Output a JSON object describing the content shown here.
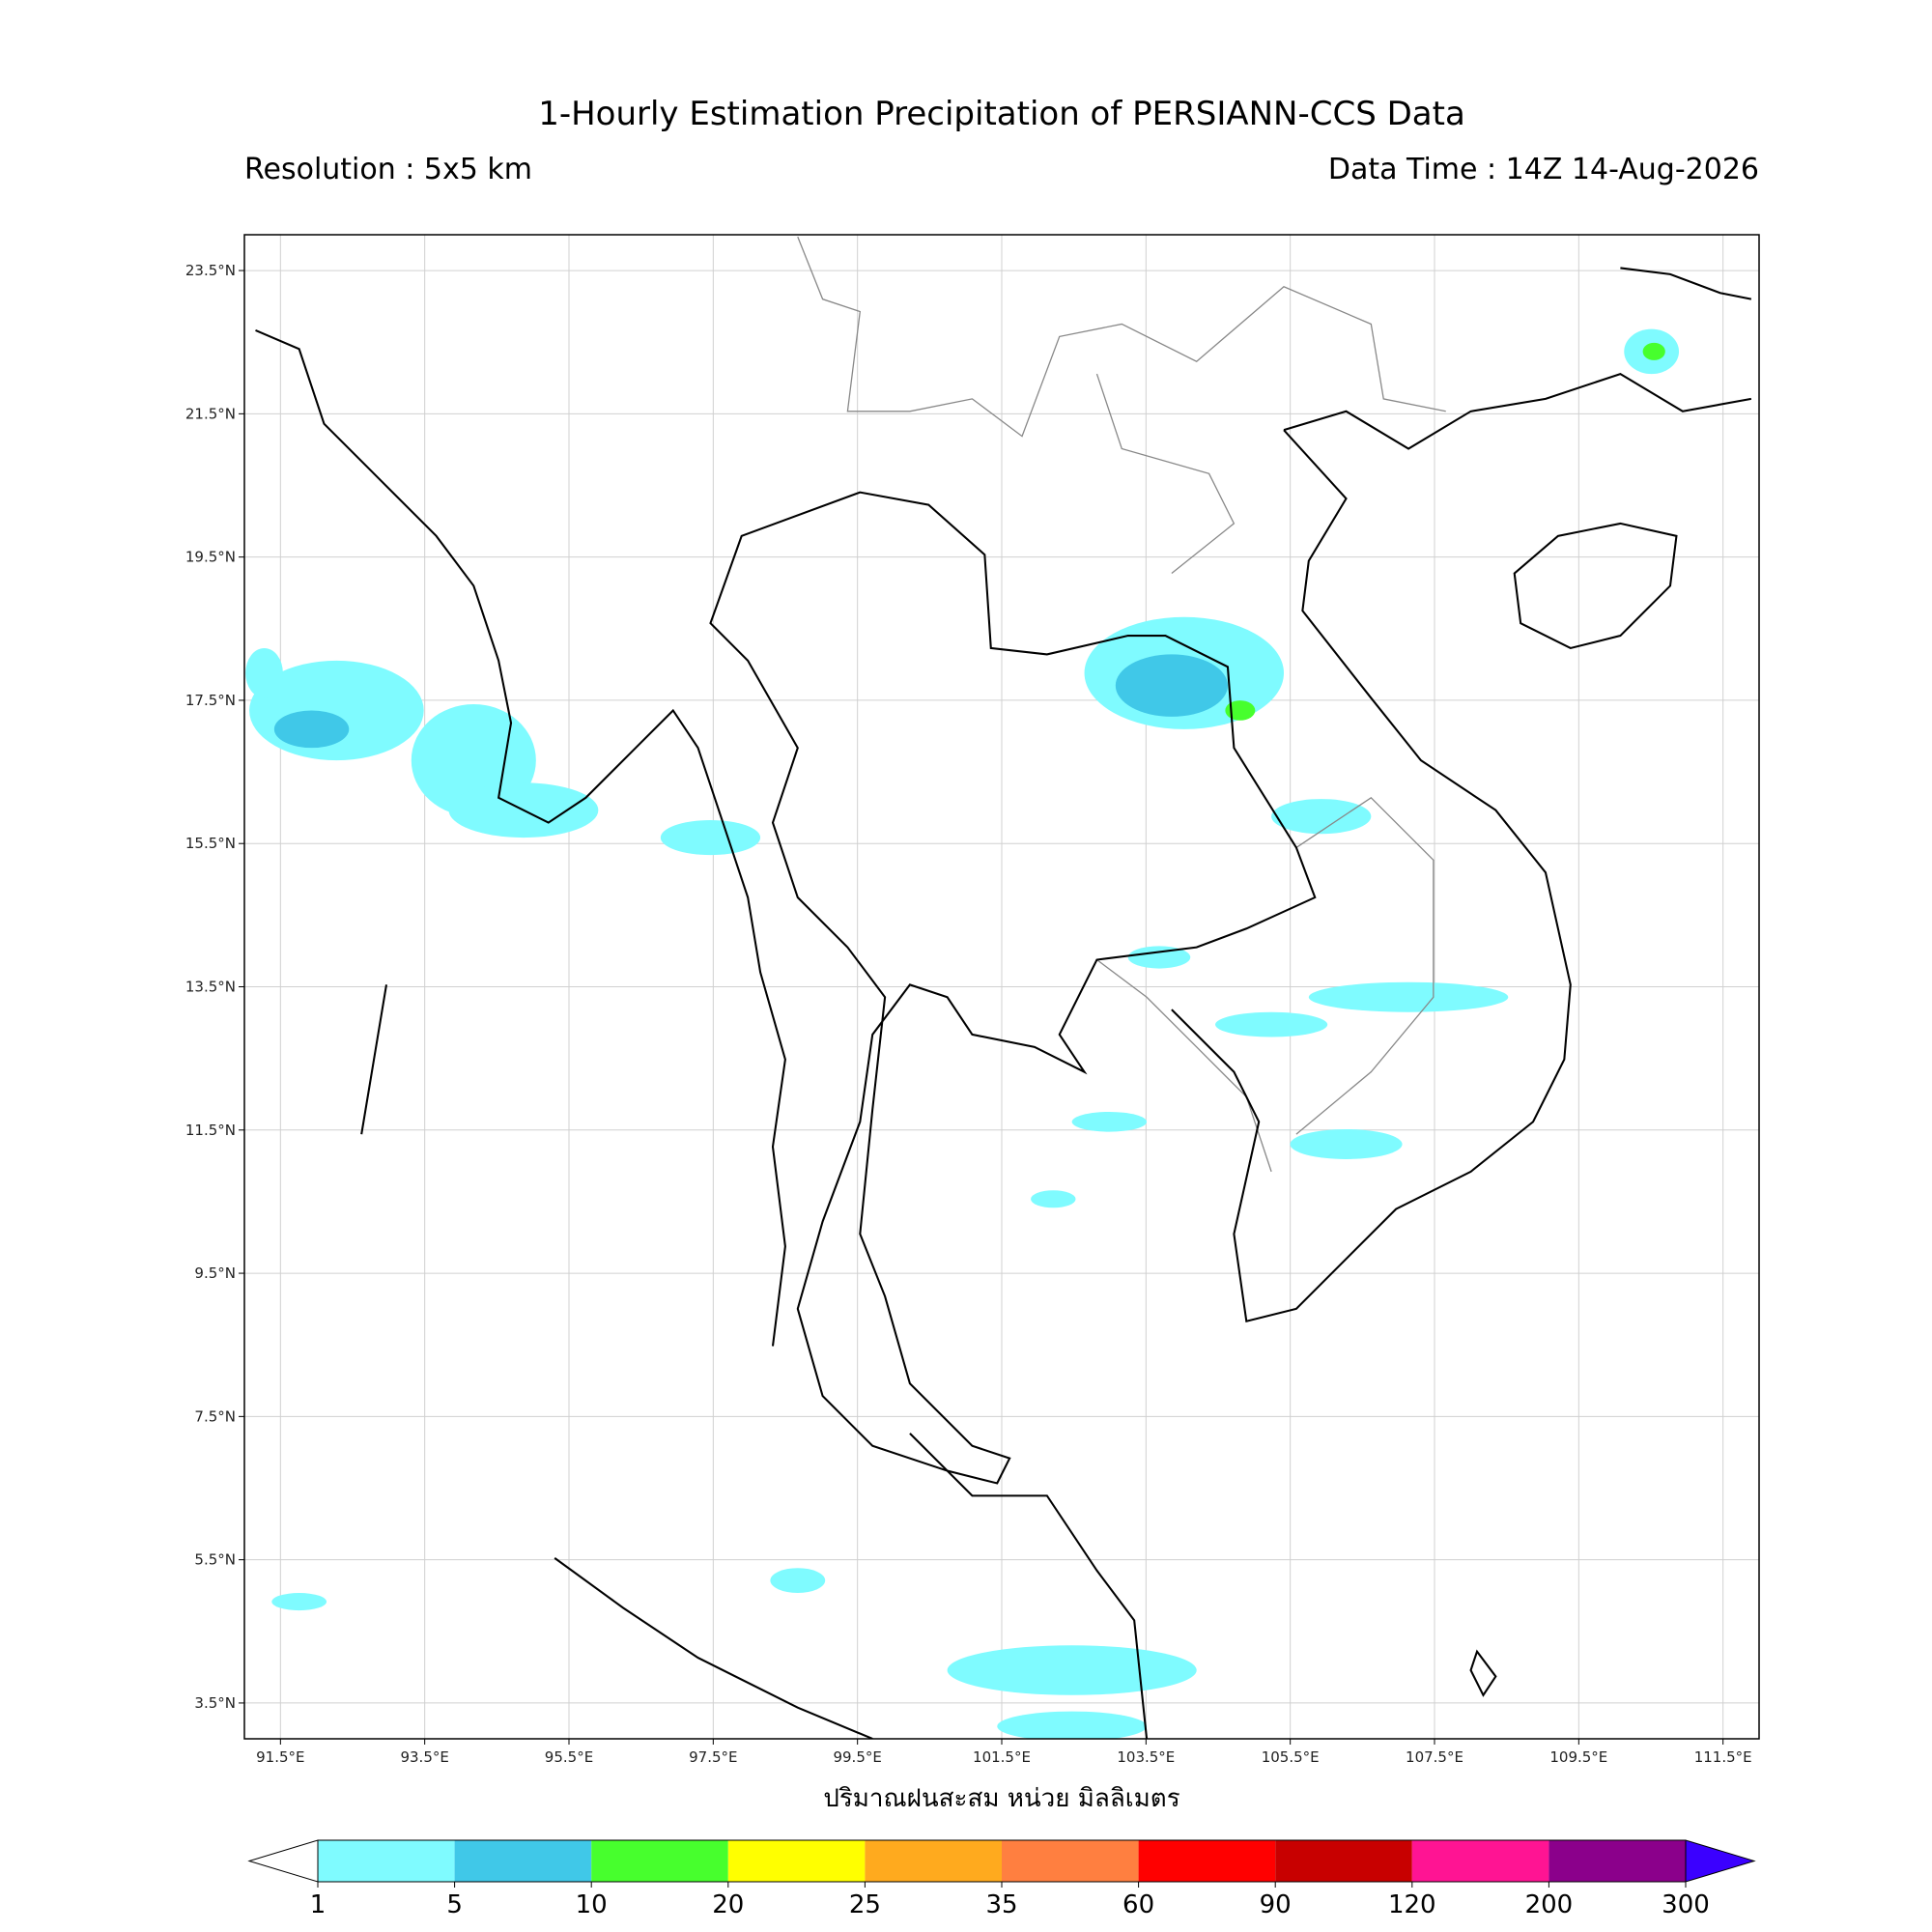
{
  "map": {
    "title": "1-Hourly Estimation Precipitation of PERSIANN-CCS Data",
    "subtitle_left": "Resolution : 5x5 km",
    "subtitle_right": "Data Time : 14Z 14-Aug-2026",
    "xlabel": "ปริมาณฝนสะสม หน่วย มิลลิเมตร",
    "xlim": [
      91,
      112
    ],
    "ylim": [
      3,
      24
    ],
    "xticks": [
      {
        "value": 91.5,
        "label": "91.5°E"
      },
      {
        "value": 93.5,
        "label": "93.5°E"
      },
      {
        "value": 95.5,
        "label": "95.5°E"
      },
      {
        "value": 97.5,
        "label": "97.5°E"
      },
      {
        "value": 99.5,
        "label": "99.5°E"
      },
      {
        "value": 101.5,
        "label": "101.5°E"
      },
      {
        "value": 103.5,
        "label": "103.5°E"
      },
      {
        "value": 105.5,
        "label": "105.5°E"
      },
      {
        "value": 107.5,
        "label": "107.5°E"
      },
      {
        "value": 109.5,
        "label": "109.5°E"
      },
      {
        "value": 111.5,
        "label": "111.5°E"
      }
    ],
    "yticks": [
      {
        "value": 23.5,
        "label": "23.5°N"
      },
      {
        "value": 21.5,
        "label": "21.5°N"
      },
      {
        "value": 19.5,
        "label": "19.5°N"
      },
      {
        "value": 17.5,
        "label": "17.5°N"
      },
      {
        "value": 15.5,
        "label": "15.5°N"
      },
      {
        "value": 13.5,
        "label": "13.5°N"
      },
      {
        "value": 11.5,
        "label": "11.5°N"
      },
      {
        "value": 9.5,
        "label": "9.5°N"
      },
      {
        "value": 7.5,
        "label": "7.5°N"
      },
      {
        "value": 5.5,
        "label": "5.5°N"
      },
      {
        "value": 3.5,
        "label": "3.5°N"
      }
    ],
    "grid": true,
    "colorbar": {
      "bounds": [
        1,
        5,
        10,
        20,
        25,
        35,
        60,
        90,
        120,
        200,
        300
      ],
      "colors": [
        "#7ffbff",
        "#40c8e8",
        "#47ff2d",
        "#ffff00",
        "#ffaa1e",
        "#ff7f40",
        "#ff0000",
        "#c80000",
        "#ff1493",
        "#8b008b"
      ],
      "under_color": "#ffffff",
      "over_color": "#3b00ff"
    }
  }
}
